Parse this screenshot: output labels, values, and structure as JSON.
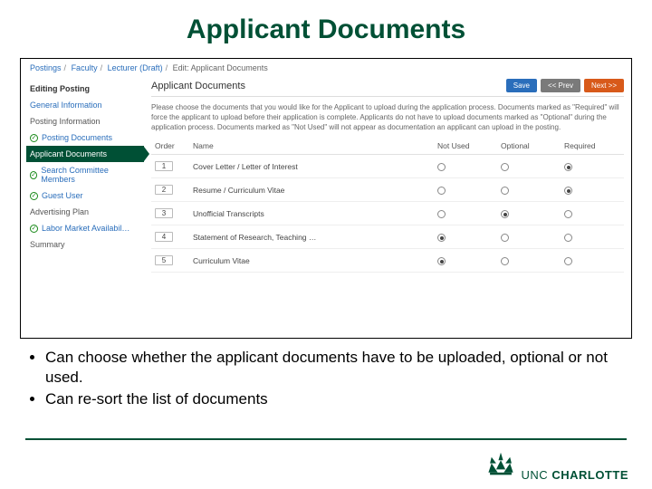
{
  "slide": {
    "title": "Applicant Documents",
    "bullets": [
      "Can choose whether the applicant documents have to be uploaded, optional or not used.",
      "Can re-sort the list of documents"
    ]
  },
  "colors": {
    "brand_green": "#005035",
    "link_blue": "#2a6ebb",
    "btn_save": "#2a6ebb",
    "btn_prev": "#7a7a7a",
    "btn_next": "#d85a1a"
  },
  "breadcrumb": {
    "items": [
      "Postings",
      "Faculty",
      "Lecturer (Draft)"
    ],
    "tail": "Edit: Applicant Documents"
  },
  "sidebar": {
    "heading": "Editing Posting",
    "items": [
      {
        "label": "General Information",
        "check": false,
        "active": false,
        "plain": false
      },
      {
        "label": "Posting Information",
        "check": false,
        "active": false,
        "plain": true
      },
      {
        "label": "Posting Documents",
        "check": true,
        "active": false,
        "plain": false
      },
      {
        "label": "Applicant Documents",
        "check": false,
        "active": true,
        "plain": false
      },
      {
        "label": "Search Committee Members",
        "check": true,
        "active": false,
        "plain": false
      },
      {
        "label": "Guest User",
        "check": true,
        "active": false,
        "plain": false
      },
      {
        "label": "Advertising Plan",
        "check": false,
        "active": false,
        "plain": true
      },
      {
        "label": "Labor Market Availabil…",
        "check": true,
        "active": false,
        "plain": false
      },
      {
        "label": "Summary",
        "check": false,
        "active": false,
        "plain": true
      }
    ]
  },
  "panel": {
    "title": "Applicant Documents",
    "buttons": {
      "save": "Save",
      "prev": "<< Prev",
      "next": "Next >>"
    },
    "instructions": "Please choose the documents that you would like for the Applicant to upload during the application process. Documents marked as \"Required\" will force the applicant to upload before their application is complete. Applicants do not have to upload documents marked as \"Optional\" during the application process. Documents marked as \"Not Used\" will not appear as documentation an applicant can upload in the posting.",
    "columns": {
      "order": "Order",
      "name": "Name",
      "notused": "Not Used",
      "optional": "Optional",
      "required": "Required"
    },
    "rows": [
      {
        "order": "1",
        "name": "Cover Letter / Letter of Interest",
        "selected": "required"
      },
      {
        "order": "2",
        "name": "Resume / Curriculum Vitae",
        "selected": "required"
      },
      {
        "order": "3",
        "name": "Unofficial Transcripts",
        "selected": "optional"
      },
      {
        "order": "4",
        "name": "Statement of Research, Teaching …",
        "selected": "notused"
      },
      {
        "order": "5",
        "name": "Curriculum Vitae",
        "selected": "notused"
      }
    ]
  },
  "logo": {
    "text_a": "UNC",
    "text_b": "CHARLOTTE"
  }
}
